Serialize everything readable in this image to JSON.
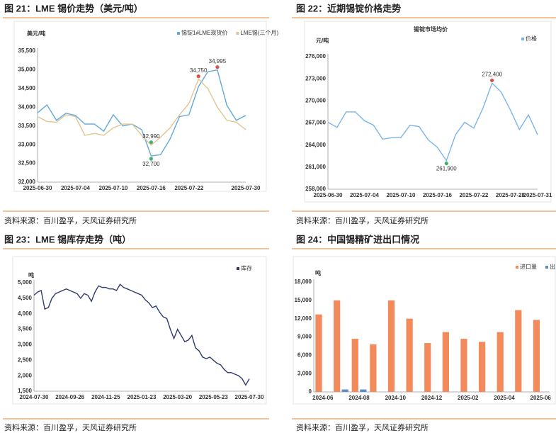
{
  "figures": [
    {
      "caption": "图 21：LME 锡价走势（美元/吨）",
      "source": "资料来源：百川盈孚，天风证券研究所"
    },
    {
      "caption": "图 22：近期锡锭价格走势",
      "source": "资料来源：百川盈孚，天风证券研究所"
    },
    {
      "caption": "图 23：LME 锡库存走势（吨）",
      "source": "资料来源：百川盈孚，天风证券研究所"
    },
    {
      "caption": "图 24：中国锡精矿进出口情况",
      "source": "资料来源：百川盈孚，天风证券研究所"
    }
  ],
  "chart_data": [
    {
      "type": "line",
      "y_label": "美元/吨",
      "categories": [
        "2025-06-30",
        null,
        null,
        null,
        "2025-07-04",
        null,
        null,
        null,
        "2025-07-10",
        null,
        null,
        null,
        "2025-07-16",
        null,
        null,
        null,
        "2025-07-22",
        null,
        null,
        null,
        null,
        null,
        "2025-07-30"
      ],
      "series": [
        {
          "name": "锡锭1#LME现货价",
          "color": "#62a8dc",
          "values": [
            33850,
            34060,
            33650,
            33840,
            33780,
            33550,
            33550,
            33360,
            33800,
            33500,
            33550,
            33400,
            32700,
            32730,
            33150,
            33750,
            33800,
            34550,
            34950,
            34995,
            34050,
            33650,
            33780
          ],
          "value_labels": [
            null,
            null,
            null,
            null,
            null,
            null,
            null,
            null,
            null,
            null,
            null,
            null,
            "32,700",
            null,
            null,
            null,
            null,
            null,
            null,
            "34,995",
            null,
            null,
            null
          ]
        },
        {
          "name": "LME锡(三个月)",
          "color": "#e2c590",
          "values": [
            33750,
            33620,
            33600,
            33800,
            33750,
            33250,
            33300,
            33250,
            33450,
            33550,
            33550,
            33250,
            32990,
            33200,
            33450,
            33800,
            34100,
            34750,
            34500,
            34000,
            33650,
            33600,
            33400
          ],
          "value_labels": [
            null,
            null,
            null,
            null,
            null,
            null,
            null,
            null,
            null,
            null,
            null,
            null,
            "32,990",
            null,
            null,
            null,
            null,
            "34,750",
            null,
            null,
            null,
            null,
            null
          ]
        }
      ],
      "ylim": [
        32000,
        35500
      ],
      "yticks": [
        {
          "value": 32000,
          "label": "32,000"
        },
        {
          "value": 32500,
          "label": "32,500"
        },
        {
          "value": 33000,
          "label": "33,000"
        },
        {
          "value": 33500,
          "label": "33,500"
        },
        {
          "value": 34000,
          "label": "34,000"
        },
        {
          "value": 34500,
          "label": "34,500"
        },
        {
          "value": 35000,
          "label": "35,000"
        },
        {
          "value": 35500,
          "label": "35,500"
        }
      ],
      "grid": false,
      "legend": "top-right"
    },
    {
      "type": "line",
      "title": "锡锭市场均价",
      "y_label": "元/吨",
      "categories": [
        "2025-06-30",
        null,
        null,
        null,
        "2025-07-04",
        null,
        null,
        null,
        "2025-07-10",
        null,
        null,
        null,
        "2025-07-16",
        null,
        null,
        null,
        "2025-07-22",
        null,
        null,
        null,
        "2025-07-28",
        null,
        null,
        "2025-07-31"
      ],
      "series": [
        {
          "name": "价格",
          "color": "#7cb5ec",
          "values": [
            267100,
            266400,
            268500,
            268500,
            267300,
            266700,
            264800,
            265000,
            265000,
            266700,
            266500,
            264700,
            263700,
            261900,
            265400,
            267100,
            266300,
            269000,
            272400,
            271200,
            268800,
            266100,
            268100,
            265400
          ],
          "value_labels": [
            null,
            null,
            null,
            null,
            null,
            null,
            null,
            null,
            null,
            null,
            null,
            null,
            null,
            "261,900",
            null,
            null,
            null,
            null,
            "272,400",
            null,
            null,
            null,
            null,
            null
          ]
        }
      ],
      "ylim": [
        258000,
        276000
      ],
      "yticks": [
        {
          "value": 258000,
          "label": "258,000"
        },
        {
          "value": 261000,
          "label": "261,000"
        },
        {
          "value": 264000,
          "label": "264,000"
        },
        {
          "value": 267000,
          "label": "267,000"
        },
        {
          "value": 270000,
          "label": "270,000"
        },
        {
          "value": 273000,
          "label": "273,000"
        },
        {
          "value": 276000,
          "label": "276,000"
        }
      ],
      "grid": false,
      "legend": "top-right"
    },
    {
      "type": "line",
      "y_label": "吨",
      "categories": [
        "2024-07-30",
        null,
        null,
        null,
        null,
        null,
        null,
        null,
        null,
        null,
        "2024-09-26",
        null,
        null,
        null,
        null,
        null,
        null,
        null,
        null,
        null,
        "2024-11-25",
        null,
        null,
        null,
        null,
        null,
        null,
        null,
        null,
        null,
        "2025-01-23",
        null,
        null,
        null,
        null,
        null,
        null,
        null,
        null,
        null,
        "2025-03-20",
        null,
        null,
        null,
        null,
        null,
        null,
        null,
        null,
        null,
        "2025-05-23",
        null,
        null,
        null,
        null,
        null,
        null,
        null,
        null,
        null,
        "2025-07-30"
      ],
      "series": [
        {
          "name": "库存",
          "color": "#2f3b6e",
          "values": [
            4600,
            4700,
            4750,
            4150,
            4200,
            4500,
            4650,
            4700,
            4750,
            4800,
            4750,
            4700,
            4650,
            4500,
            4650,
            4600,
            4400,
            4700,
            4900,
            4850,
            4850,
            4800,
            4800,
            4750,
            4950,
            4850,
            4800,
            4750,
            4700,
            4650,
            4600,
            4450,
            4350,
            4200,
            4250,
            4050,
            3900,
            3850,
            3500,
            3200,
            3500,
            3300,
            3100,
            3150,
            3300,
            2900,
            2800,
            2600,
            2550,
            2600,
            2500,
            2400,
            2350,
            2200,
            2100,
            2100,
            2050,
            2000,
            1900,
            1700,
            1900
          ]
        }
      ],
      "ylim": [
        1500,
        5000
      ],
      "yticks": [
        {
          "value": 1500,
          "label": "1,500"
        },
        {
          "value": 2000,
          "label": "2,000"
        },
        {
          "value": 2500,
          "label": "2,500"
        },
        {
          "value": 3000,
          "label": "3,000"
        },
        {
          "value": 3500,
          "label": "3,500"
        },
        {
          "value": 4000,
          "label": "4,000"
        },
        {
          "value": 4500,
          "label": "4,500"
        },
        {
          "value": 5000,
          "label": "5,000"
        }
      ],
      "grid": false,
      "legend": "top-right"
    },
    {
      "type": "bar",
      "y_label": "吨",
      "categories": [
        "2024-06",
        null,
        "2024-08",
        null,
        "2024-10",
        null,
        "2024-12",
        null,
        "2025-02",
        null,
        "2025-04",
        null,
        "2025-06"
      ],
      "series": [
        {
          "name": "进口量",
          "color": "#f28a5b",
          "values": [
            12700,
            15000,
            8700,
            7800,
            15000,
            12000,
            8000,
            9800,
            8700,
            8200,
            9800,
            13400,
            11800
          ]
        },
        {
          "name": "出口量",
          "color": "#5b8ec9",
          "values": [
            0,
            400,
            400,
            0,
            0,
            0,
            0,
            0,
            0,
            0,
            0,
            0,
            0
          ]
        }
      ],
      "ylim": [
        0,
        18000
      ],
      "yticks": [
        0,
        {
          "value": 3000,
          "label": "3,000"
        },
        {
          "value": 6000,
          "label": "6,000"
        },
        {
          "value": 9000,
          "label": "9,000"
        },
        {
          "value": 12000,
          "label": "12,000"
        },
        {
          "value": 15000,
          "label": "15,000"
        },
        {
          "value": 18000,
          "label": "18,000"
        }
      ],
      "grid": false,
      "legend": "top-right"
    }
  ]
}
